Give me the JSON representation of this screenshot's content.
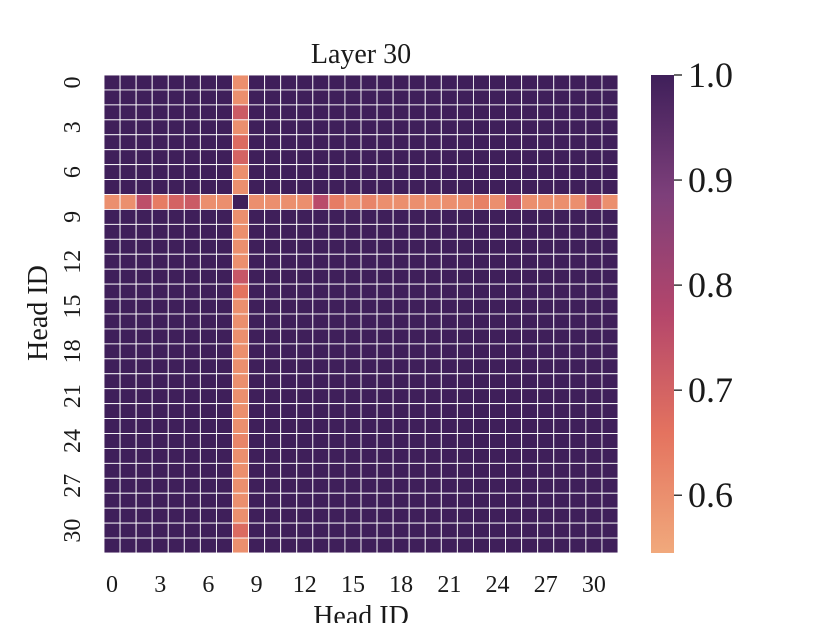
{
  "chart_data": {
    "type": "heatmap",
    "title": "Layer 30",
    "xlabel": "Head ID",
    "ylabel": "Head ID",
    "n": 32,
    "tick_step": 3,
    "x_ticks": [
      "0",
      "3",
      "6",
      "9",
      "12",
      "15",
      "18",
      "21",
      "24",
      "27",
      "30"
    ],
    "y_ticks": [
      "0",
      "3",
      "6",
      "9",
      "12",
      "15",
      "18",
      "21",
      "24",
      "27",
      "30"
    ],
    "colorbar": {
      "min": 0.545,
      "max": 1.0,
      "ticks": [
        "0.6",
        "0.7",
        "0.8",
        "0.9",
        "1.0"
      ]
    },
    "default_value": 1.0,
    "diagonal_value": 1.0,
    "special_index": 8,
    "special_row_values": [
      0.6,
      0.6,
      0.75,
      0.64,
      0.7,
      0.72,
      0.6,
      0.6,
      1.0,
      0.6,
      0.6,
      0.6,
      0.6,
      0.76,
      0.64,
      0.6,
      0.62,
      0.6,
      0.6,
      0.6,
      0.6,
      0.6,
      0.6,
      0.63,
      0.6,
      0.74,
      0.6,
      0.6,
      0.6,
      0.6,
      0.72,
      0.6
    ],
    "special_col_values": [
      0.6,
      0.6,
      0.72,
      0.6,
      0.68,
      0.7,
      0.6,
      0.6,
      1.0,
      0.6,
      0.6,
      0.6,
      0.6,
      0.73,
      0.66,
      0.6,
      0.6,
      0.6,
      0.6,
      0.6,
      0.6,
      0.6,
      0.6,
      0.6,
      0.62,
      0.6,
      0.6,
      0.6,
      0.6,
      0.6,
      0.68,
      0.6
    ],
    "colormap": [
      "#f1a97c",
      "#e4735f",
      "#b4466b",
      "#7d3f7a",
      "#3f1f5a"
    ]
  }
}
